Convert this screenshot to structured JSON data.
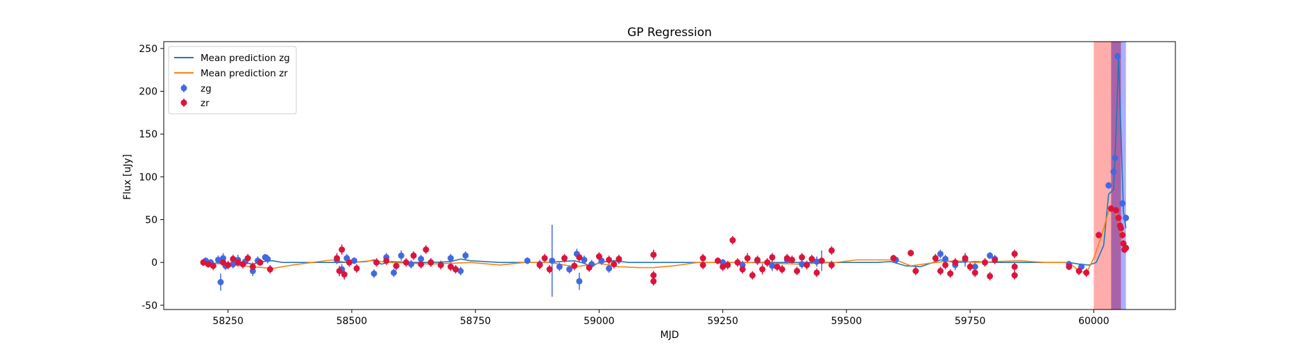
{
  "chart_data": {
    "type": "scatter",
    "title": "GP Regression",
    "xlabel": "MJD",
    "ylabel": "Flux [uJy]",
    "xlim": [
      58120,
      60165
    ],
    "ylim": [
      -55,
      258
    ],
    "xticks": [
      58250,
      58500,
      58750,
      59000,
      59250,
      59500,
      59750,
      60000
    ],
    "yticks": [
      -50,
      0,
      50,
      100,
      150,
      200,
      250
    ],
    "grid": false,
    "legend_position": "top-left",
    "shaded_regions": [
      {
        "x0": 60000,
        "x1": 60035,
        "color": "#ff5a5a",
        "opacity": 0.5
      },
      {
        "x0": 60035,
        "x1": 60055,
        "color": "#8b2f8b",
        "opacity": 0.75
      },
      {
        "x0": 60055,
        "x1": 60065,
        "color": "#6a6aff",
        "opacity": 0.55
      }
    ],
    "lines": [
      {
        "name": "Mean prediction zg",
        "color": "#1f77b4",
        "points": [
          [
            58200,
            0
          ],
          [
            58220,
            -1
          ],
          [
            58240,
            0
          ],
          [
            58255,
            -2
          ],
          [
            58280,
            0
          ],
          [
            58300,
            -2
          ],
          [
            58320,
            1
          ],
          [
            58340,
            2
          ],
          [
            58360,
            0
          ],
          [
            58450,
            0
          ],
          [
            58500,
            0
          ],
          [
            58530,
            1
          ],
          [
            58545,
            3
          ],
          [
            58560,
            -2
          ],
          [
            58580,
            1
          ],
          [
            58620,
            0
          ],
          [
            58660,
            0
          ],
          [
            58700,
            1
          ],
          [
            58720,
            4
          ],
          [
            58740,
            2
          ],
          [
            58800,
            0
          ],
          [
            58900,
            0
          ],
          [
            58920,
            1
          ],
          [
            58950,
            2
          ],
          [
            58970,
            -1
          ],
          [
            58985,
            -5
          ],
          [
            59000,
            0
          ],
          [
            59030,
            2
          ],
          [
            59060,
            0
          ],
          [
            59100,
            0
          ],
          [
            59200,
            0
          ],
          [
            59300,
            0
          ],
          [
            59400,
            0
          ],
          [
            59470,
            0
          ],
          [
            59500,
            0
          ],
          [
            59560,
            0
          ],
          [
            59590,
            1
          ],
          [
            59620,
            -4
          ],
          [
            59650,
            -5
          ],
          [
            59690,
            3
          ],
          [
            59720,
            0
          ],
          [
            59760,
            1
          ],
          [
            59800,
            0
          ],
          [
            59900,
            0
          ],
          [
            59950,
            0
          ],
          [
            59970,
            -2
          ],
          [
            59990,
            -3
          ],
          [
            60005,
            0
          ],
          [
            60020,
            20
          ],
          [
            60030,
            80
          ],
          [
            60040,
            85
          ],
          [
            60045,
            150
          ],
          [
            60050,
            240
          ],
          [
            60055,
            150
          ],
          [
            60060,
            60
          ],
          [
            60065,
            40
          ]
        ]
      },
      {
        "name": "Mean prediction zr",
        "color": "#ff7f0e",
        "points": [
          [
            58200,
            0
          ],
          [
            58240,
            -2
          ],
          [
            58280,
            -4
          ],
          [
            58320,
            -6
          ],
          [
            58340,
            -7
          ],
          [
            58380,
            -3
          ],
          [
            58420,
            0
          ],
          [
            58460,
            3
          ],
          [
            58480,
            1
          ],
          [
            58500,
            0
          ],
          [
            58540,
            2
          ],
          [
            58580,
            0
          ],
          [
            58620,
            -1
          ],
          [
            58660,
            -2
          ],
          [
            58700,
            -1
          ],
          [
            58740,
            0
          ],
          [
            58800,
            -3
          ],
          [
            58850,
            0
          ],
          [
            58900,
            0
          ],
          [
            58950,
            -5
          ],
          [
            58980,
            -3
          ],
          [
            59000,
            -1
          ],
          [
            59040,
            -5
          ],
          [
            59080,
            -6
          ],
          [
            59110,
            -6
          ],
          [
            59150,
            -4
          ],
          [
            59200,
            0
          ],
          [
            59250,
            0
          ],
          [
            59300,
            0
          ],
          [
            59400,
            -2
          ],
          [
            59480,
            0
          ],
          [
            59520,
            3
          ],
          [
            59560,
            3
          ],
          [
            59600,
            3
          ],
          [
            59630,
            -4
          ],
          [
            59680,
            0
          ],
          [
            59720,
            2
          ],
          [
            59760,
            0
          ],
          [
            59800,
            1
          ],
          [
            59850,
            2
          ],
          [
            59900,
            0
          ],
          [
            59950,
            0
          ],
          [
            59970,
            -10
          ],
          [
            59985,
            -12
          ],
          [
            60000,
            5
          ],
          [
            60015,
            30
          ],
          [
            60030,
            60
          ],
          [
            60040,
            62
          ],
          [
            60045,
            58
          ],
          [
            60050,
            50
          ],
          [
            60055,
            30
          ],
          [
            60060,
            20
          ],
          [
            60065,
            18
          ]
        ]
      }
    ],
    "series": [
      {
        "name": "zg",
        "color": "#4169e1",
        "points": [
          [
            58205,
            2,
            4
          ],
          [
            58215,
            0,
            4
          ],
          [
            58230,
            3,
            5
          ],
          [
            58235,
            -23,
            10
          ],
          [
            58240,
            5,
            6
          ],
          [
            58245,
            -4,
            5
          ],
          [
            58260,
            -2,
            5
          ],
          [
            58270,
            3,
            6
          ],
          [
            58285,
            1,
            5
          ],
          [
            58300,
            -10,
            6
          ],
          [
            58310,
            2,
            5
          ],
          [
            58325,
            6,
            4
          ],
          [
            58330,
            4,
            5
          ],
          [
            58470,
            3,
            5
          ],
          [
            58480,
            -8,
            6
          ],
          [
            58490,
            5,
            5
          ],
          [
            58505,
            2,
            4
          ],
          [
            58545,
            -13,
            5
          ],
          [
            58570,
            6,
            5
          ],
          [
            58585,
            -12,
            5
          ],
          [
            58600,
            8,
            6
          ],
          [
            58620,
            -2,
            5
          ],
          [
            58640,
            4,
            5
          ],
          [
            58660,
            0,
            5
          ],
          [
            58680,
            -3,
            5
          ],
          [
            58700,
            5,
            5
          ],
          [
            58720,
            -10,
            5
          ],
          [
            58730,
            8,
            5
          ],
          [
            58855,
            2,
            4
          ],
          [
            58880,
            -2,
            5
          ],
          [
            58905,
            2,
            42
          ],
          [
            58920,
            -5,
            5
          ],
          [
            58940,
            -8,
            5
          ],
          [
            58955,
            10,
            6
          ],
          [
            58960,
            -22,
            10
          ],
          [
            58970,
            3,
            5
          ],
          [
            58985,
            -2,
            5
          ],
          [
            59005,
            2,
            5
          ],
          [
            59020,
            -7,
            5
          ],
          [
            59040,
            3,
            5
          ],
          [
            59250,
            0,
            4
          ],
          [
            59290,
            -3,
            5
          ],
          [
            59320,
            2,
            5
          ],
          [
            59350,
            -4,
            6
          ],
          [
            59380,
            3,
            5
          ],
          [
            59410,
            -2,
            5
          ],
          [
            59440,
            1,
            6
          ],
          [
            59450,
            2,
            12
          ],
          [
            59600,
            3,
            4
          ],
          [
            59690,
            10,
            5
          ],
          [
            59700,
            4,
            5
          ],
          [
            59720,
            -3,
            6
          ],
          [
            59740,
            3,
            8
          ],
          [
            59760,
            -5,
            5
          ],
          [
            59790,
            8,
            4
          ],
          [
            59800,
            4,
            5
          ],
          [
            59950,
            -2,
            4
          ],
          [
            59975,
            -5,
            4
          ],
          [
            60030,
            90,
            4
          ],
          [
            60040,
            106,
            4
          ],
          [
            60043,
            122,
            4
          ],
          [
            60048,
            241,
            4
          ],
          [
            60058,
            69,
            4
          ],
          [
            60065,
            52,
            4
          ]
        ]
      },
      {
        "name": "zr",
        "color": "#dc143c",
        "points": [
          [
            58200,
            0,
            4
          ],
          [
            58210,
            -2,
            4
          ],
          [
            58220,
            -4,
            5
          ],
          [
            58240,
            0,
            5
          ],
          [
            58250,
            -3,
            5
          ],
          [
            58260,
            4,
            5
          ],
          [
            58270,
            0,
            5
          ],
          [
            58280,
            -2,
            5
          ],
          [
            58290,
            5,
            5
          ],
          [
            58300,
            -5,
            5
          ],
          [
            58315,
            0,
            4
          ],
          [
            58335,
            -8,
            5
          ],
          [
            58470,
            5,
            6
          ],
          [
            58475,
            -10,
            6
          ],
          [
            58480,
            15,
            6
          ],
          [
            58485,
            -14,
            6
          ],
          [
            58495,
            0,
            5
          ],
          [
            58510,
            -7,
            5
          ],
          [
            58550,
            0,
            5
          ],
          [
            58570,
            2,
            5
          ],
          [
            58590,
            -4,
            5
          ],
          [
            58610,
            0,
            5
          ],
          [
            58625,
            8,
            5
          ],
          [
            58640,
            -2,
            5
          ],
          [
            58650,
            15,
            5
          ],
          [
            58660,
            0,
            5
          ],
          [
            58680,
            -3,
            5
          ],
          [
            58700,
            -5,
            5
          ],
          [
            58710,
            -8,
            5
          ],
          [
            58880,
            -3,
            5
          ],
          [
            58890,
            5,
            5
          ],
          [
            58900,
            -8,
            5
          ],
          [
            58930,
            5,
            5
          ],
          [
            58950,
            -4,
            5
          ],
          [
            58960,
            6,
            5
          ],
          [
            58980,
            -6,
            5
          ],
          [
            59000,
            7,
            5
          ],
          [
            59020,
            3,
            5
          ],
          [
            59030,
            -2,
            5
          ],
          [
            59040,
            4,
            5
          ],
          [
            59110,
            9,
            6
          ],
          [
            59110,
            -15,
            5
          ],
          [
            59110,
            -22,
            5
          ],
          [
            59210,
            -3,
            5
          ],
          [
            59210,
            5,
            5
          ],
          [
            59240,
            2,
            4
          ],
          [
            59250,
            -5,
            5
          ],
          [
            59260,
            -3,
            5
          ],
          [
            59270,
            26,
            5
          ],
          [
            59280,
            0,
            5
          ],
          [
            59290,
            -8,
            5
          ],
          [
            59300,
            5,
            6
          ],
          [
            59310,
            -15,
            5
          ],
          [
            59320,
            3,
            5
          ],
          [
            59330,
            -8,
            6
          ],
          [
            59340,
            0,
            5
          ],
          [
            59350,
            6,
            5
          ],
          [
            59360,
            -5,
            5
          ],
          [
            59370,
            -8,
            5
          ],
          [
            59380,
            5,
            5
          ],
          [
            59390,
            3,
            5
          ],
          [
            59400,
            -10,
            5
          ],
          [
            59410,
            6,
            5
          ],
          [
            59420,
            -3,
            5
          ],
          [
            59430,
            4,
            5
          ],
          [
            59440,
            -12,
            5
          ],
          [
            59450,
            2,
            5
          ],
          [
            59470,
            14,
            5
          ],
          [
            59470,
            -3,
            5
          ],
          [
            59595,
            5,
            4
          ],
          [
            59630,
            11,
            4
          ],
          [
            59640,
            -10,
            5
          ],
          [
            59680,
            5,
            5
          ],
          [
            59690,
            -10,
            5
          ],
          [
            59700,
            -3,
            5
          ],
          [
            59710,
            -13,
            5
          ],
          [
            59720,
            0,
            5
          ],
          [
            59740,
            5,
            5
          ],
          [
            59750,
            -5,
            5
          ],
          [
            59760,
            -12,
            5
          ],
          [
            59780,
            0,
            5
          ],
          [
            59790,
            -16,
            5
          ],
          [
            59800,
            3,
            5
          ],
          [
            59840,
            -5,
            5
          ],
          [
            59840,
            10,
            5
          ],
          [
            59840,
            -15,
            5
          ],
          [
            59950,
            -5,
            4
          ],
          [
            59970,
            -10,
            5
          ],
          [
            59985,
            -12,
            5
          ],
          [
            60010,
            32,
            4
          ],
          [
            60035,
            63,
            4
          ],
          [
            60045,
            61,
            4
          ],
          [
            60050,
            52,
            4
          ],
          [
            60053,
            43,
            4
          ],
          [
            60055,
            40,
            4
          ],
          [
            60058,
            32,
            4
          ],
          [
            60060,
            22,
            4
          ],
          [
            60062,
            15,
            4
          ],
          [
            60065,
            17,
            4
          ]
        ]
      }
    ]
  }
}
